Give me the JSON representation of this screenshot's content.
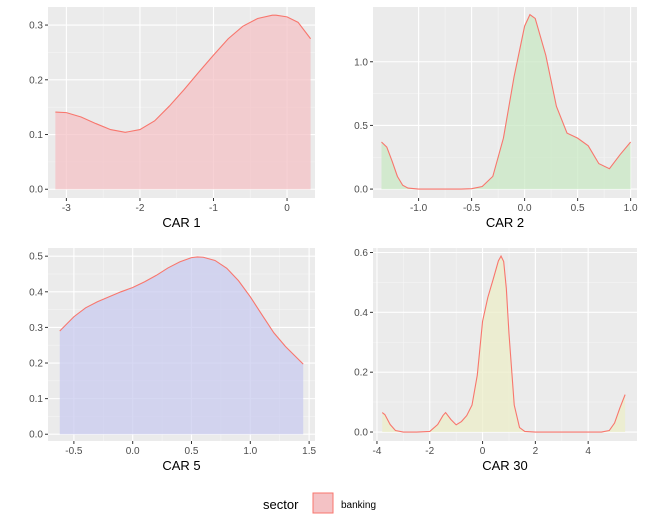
{
  "chart_data": [
    {
      "type": "area",
      "xlabel": "CAR 1",
      "xlim": [
        -3.25,
        0.38
      ],
      "ylim": [
        -0.016,
        0.333
      ],
      "xticks": [
        -3,
        -2,
        -1,
        0
      ],
      "xtick_labels": [
        "-3",
        "-2",
        "-1",
        "0"
      ],
      "yticks": [
        0.0,
        0.1,
        0.2,
        0.3
      ],
      "ytick_labels": [
        "0.0",
        "0.1",
        "0.2",
        "0.3"
      ],
      "fill": "#f4c2c5",
      "line": "#f8766d",
      "series": [
        {
          "name": "banking",
          "x": [
            -3.15,
            -3.0,
            -2.8,
            -2.6,
            -2.4,
            -2.2,
            -2.0,
            -1.8,
            -1.6,
            -1.4,
            -1.2,
            -1.0,
            -0.8,
            -0.6,
            -0.4,
            -0.2,
            -0.15,
            0.0,
            0.15,
            0.32
          ],
          "y": [
            0.141,
            0.14,
            0.132,
            0.12,
            0.109,
            0.104,
            0.109,
            0.125,
            0.152,
            0.182,
            0.214,
            0.245,
            0.275,
            0.298,
            0.312,
            0.318,
            0.318,
            0.315,
            0.305,
            0.275
          ]
        }
      ]
    },
    {
      "type": "area",
      "xlabel": "CAR 2",
      "xlim": [
        -1.43,
        1.06
      ],
      "ylim": [
        -0.07,
        1.43
      ],
      "xticks": [
        -1.0,
        -0.5,
        0.0,
        0.5,
        1.0
      ],
      "xtick_labels": [
        "-1.0",
        "-0.5",
        "0.0",
        "0.5",
        "1.0"
      ],
      "yticks": [
        0.0,
        0.5,
        1.0
      ],
      "ytick_labels": [
        "0.0",
        "0.5",
        "1.0"
      ],
      "fill": "#c9e8c4",
      "line": "#f8766d",
      "series": [
        {
          "name": "banking",
          "x": [
            -1.35,
            -1.3,
            -1.25,
            -1.2,
            -1.15,
            -1.1,
            -1.0,
            -0.9,
            -0.8,
            -0.7,
            -0.6,
            -0.5,
            -0.4,
            -0.3,
            -0.2,
            -0.1,
            0.0,
            0.05,
            0.1,
            0.2,
            0.3,
            0.4,
            0.5,
            0.6,
            0.7,
            0.8,
            0.9,
            1.0
          ],
          "y": [
            0.37,
            0.33,
            0.22,
            0.1,
            0.03,
            0.008,
            0.0,
            0.0,
            0.0,
            0.0,
            0.0,
            0.003,
            0.02,
            0.1,
            0.4,
            0.88,
            1.28,
            1.37,
            1.34,
            1.05,
            0.65,
            0.44,
            0.4,
            0.34,
            0.2,
            0.16,
            0.27,
            0.37
          ]
        }
      ]
    },
    {
      "type": "area",
      "xlabel": "CAR 5",
      "xlim": [
        -0.72,
        1.55
      ],
      "ylim": [
        -0.019,
        0.523
      ],
      "xticks": [
        -0.5,
        0.0,
        0.5,
        1.0,
        1.5
      ],
      "xtick_labels": [
        "-0.5",
        "0.0",
        "0.5",
        "1.0",
        "1.5"
      ],
      "yticks": [
        0.0,
        0.1,
        0.2,
        0.3,
        0.4,
        0.5
      ],
      "ytick_labels": [
        "0.0",
        "0.1",
        "0.2",
        "0.3",
        "0.4",
        "0.5"
      ],
      "fill": "#c9cbef",
      "line": "#f8766d",
      "series": [
        {
          "name": "banking",
          "x": [
            -0.62,
            -0.5,
            -0.4,
            -0.3,
            -0.2,
            -0.1,
            0.0,
            0.1,
            0.2,
            0.3,
            0.4,
            0.5,
            0.55,
            0.6,
            0.7,
            0.8,
            0.9,
            1.0,
            1.1,
            1.2,
            1.3,
            1.45
          ],
          "y": [
            0.29,
            0.33,
            0.355,
            0.372,
            0.386,
            0.4,
            0.412,
            0.428,
            0.446,
            0.467,
            0.484,
            0.496,
            0.498,
            0.497,
            0.488,
            0.466,
            0.431,
            0.386,
            0.335,
            0.285,
            0.246,
            0.197
          ]
        }
      ]
    },
    {
      "type": "area",
      "xlabel": "CAR 30",
      "xlim": [
        -4.15,
        5.85
      ],
      "ylim": [
        -0.03,
        0.615
      ],
      "xticks": [
        -4,
        -2,
        0,
        2,
        4
      ],
      "xtick_labels": [
        "-4",
        "-2",
        "0",
        "2",
        "4"
      ],
      "yticks": [
        0.0,
        0.2,
        0.4,
        0.6
      ],
      "ytick_labels": [
        "0.0",
        "0.2",
        "0.4",
        "0.6"
      ],
      "fill": "#ecedc8",
      "line": "#f8766d",
      "series": [
        {
          "name": "banking",
          "x": [
            -3.8,
            -3.7,
            -3.5,
            -3.3,
            -3.0,
            -2.5,
            -2.0,
            -1.7,
            -1.5,
            -1.4,
            -1.2,
            -1.0,
            -0.8,
            -0.6,
            -0.4,
            -0.2,
            0.0,
            0.2,
            0.4,
            0.6,
            0.7,
            0.8,
            0.9,
            1.0,
            1.2,
            1.4,
            1.6,
            2.0,
            3.0,
            4.0,
            4.5,
            4.8,
            5.0,
            5.2,
            5.4
          ],
          "y": [
            0.065,
            0.058,
            0.025,
            0.005,
            0.0,
            0.0,
            0.002,
            0.025,
            0.055,
            0.065,
            0.042,
            0.024,
            0.035,
            0.055,
            0.09,
            0.19,
            0.37,
            0.45,
            0.51,
            0.572,
            0.588,
            0.57,
            0.48,
            0.33,
            0.09,
            0.015,
            0.002,
            0.0,
            0.0,
            0.0,
            0.0,
            0.005,
            0.03,
            0.08,
            0.125
          ]
        }
      ]
    }
  ],
  "legend": {
    "title": "sector",
    "label": "banking",
    "fill": "#f4c2c5",
    "line": "#f8766d"
  }
}
